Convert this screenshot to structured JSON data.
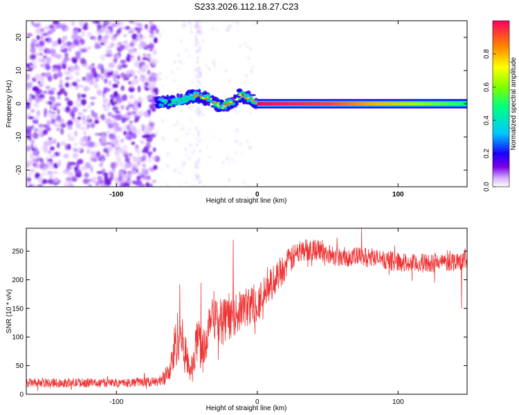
{
  "title": "S233.2026.112.18.27.C23",
  "chart_data": [
    {
      "type": "heatmap",
      "name": "spectrogram",
      "xlabel": "Height of straight line (km)",
      "ylabel": "Frequency (Hz)",
      "xlim": [
        -164,
        149
      ],
      "ylim": [
        -25,
        25
      ],
      "xticks": [
        -100,
        0,
        100
      ],
      "xtick_labels": [
        "-100",
        "0",
        "100"
      ],
      "yticks": [
        -20,
        -10,
        0,
        10,
        20
      ],
      "ytick_labels": [
        "-20",
        "-10",
        "0",
        "10",
        "20"
      ],
      "colorbar": {
        "label": "Normalized spectral amplitude",
        "range": [
          0,
          1
        ],
        "ticks": [
          0.0,
          0.2,
          0.4,
          0.6,
          0.8
        ],
        "tick_labels": [
          "0.0",
          "0.2",
          "0.4",
          "0.6",
          "0.8"
        ],
        "colormap": [
          "#ffffff",
          "#d9b3ff",
          "#7a00e6",
          "#1a00ff",
          "#00c8ff",
          "#00ff80",
          "#80ff00",
          "#ffff00",
          "#ff8000",
          "#ff0060"
        ]
      },
      "regions": [
        {
          "x_range": [
            -164,
            -72
          ],
          "description": "scattered noise",
          "amplitude": [
            0.0,
            0.2
          ]
        },
        {
          "x_range": [
            -72,
            0
          ],
          "description": "emerging signal near 0 Hz",
          "amplitude": [
            0.2,
            0.6
          ]
        },
        {
          "x_range": [
            0,
            149
          ],
          "description": "strong signal at 0 Hz",
          "amplitude": [
            0.6,
            1.0
          ]
        }
      ],
      "ridge": [
        {
          "x": -72,
          "y": 0.5
        },
        {
          "x": -62,
          "y": 0.3
        },
        {
          "x": -54,
          "y": 1.0
        },
        {
          "x": -44,
          "y": 2.5
        },
        {
          "x": -34,
          "y": 1.5
        },
        {
          "x": -25,
          "y": -1.0
        },
        {
          "x": -18,
          "y": 0.5
        },
        {
          "x": -12,
          "y": 2.5
        },
        {
          "x": -5,
          "y": 1.5
        },
        {
          "x": 0,
          "y": 0.0
        },
        {
          "x": 149,
          "y": 0.0
        }
      ]
    },
    {
      "type": "line",
      "name": "snr",
      "xlabel": "Height of straight line (km)",
      "ylabel": "SNR (10 * v/v)",
      "xlim": [
        -164,
        149
      ],
      "ylim": [
        0,
        290
      ],
      "xticks": [
        -100,
        0,
        100
      ],
      "xtick_labels": [
        "-100",
        "0",
        "100"
      ],
      "yticks": [
        0,
        50,
        100,
        150,
        200,
        250
      ],
      "ytick_labels": [
        "0",
        "50",
        "100",
        "150",
        "200",
        "250"
      ],
      "series": [
        {
          "name": "SNR",
          "color": "#ee3333",
          "envelope": {
            "x": [
              -164,
              -130,
              -100,
              -70,
              -62,
              -58,
              -55,
              -50,
              -46,
              -42,
              -38,
              -33,
              -28,
              -20,
              -10,
              0,
              8,
              15,
              22,
              30,
              40,
              50,
              60,
              75,
              90,
              110,
              130,
              149
            ],
            "y": [
              20,
              20,
              20,
              22,
              40,
              90,
              110,
              60,
              40,
              110,
              70,
              150,
              130,
              130,
              150,
              160,
              185,
              210,
              230,
              250,
              255,
              245,
              240,
              240,
              235,
              228,
              230,
              235
            ],
            "amp": [
              8,
              8,
              8,
              8,
              20,
              50,
              45,
              35,
              25,
              45,
              40,
              40,
              45,
              35,
              35,
              35,
              30,
              28,
              25,
              20,
              20,
              18,
              18,
              17,
              17,
              17,
              17,
              17
            ]
          },
          "spikes": [
            {
              "x": -55,
              "y": 192
            },
            {
              "x": -40,
              "y": 195
            },
            {
              "x": -17,
              "y": 270
            },
            {
              "x": 74,
              "y": 290
            },
            {
              "x": 145,
              "y": 150
            }
          ]
        }
      ]
    }
  ]
}
